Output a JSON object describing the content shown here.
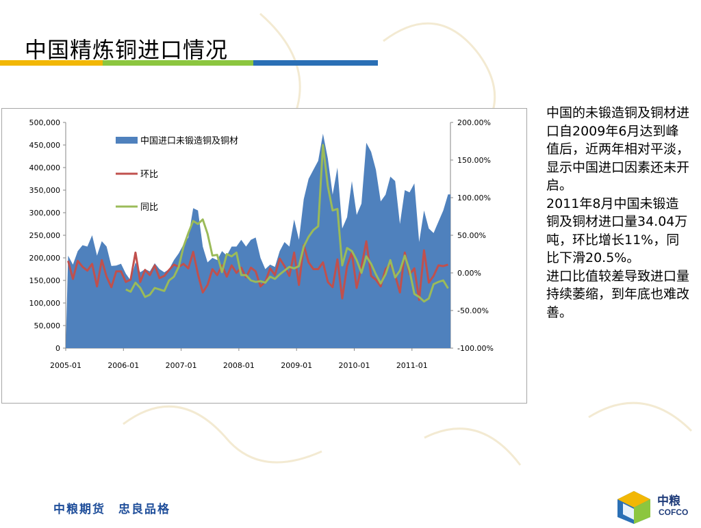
{
  "slide": {
    "title": "中国精炼铜进口情况",
    "commentary": [
      "中国的未锻造铜及铜材进口自2009年6月达到峰值后，近两年相对平淡，显示中国进口因素还未开启。",
      "2011年8月中国未锻造铜及铜材进口量34.04万吨，环比增长11%，同比下滑20.5%。",
      "进口比值较差导致进口量持续萎缩，到年底也难改善。"
    ],
    "footer_slogan": "中粮期货　忠良品格",
    "logo_cn": "中粮",
    "logo_en": "COFCO"
  },
  "colors": {
    "area": "#4f81bd",
    "mom": "#c0504d",
    "yoy": "#9bbb59",
    "underline": [
      "#f2b705",
      "#8cc63f",
      "#2a6fb5"
    ]
  },
  "chart_data": {
    "type": "area+line",
    "x": [
      "2005-01",
      "2005-02",
      "2005-03",
      "2005-04",
      "2005-05",
      "2005-06",
      "2005-07",
      "2005-08",
      "2005-09",
      "2005-10",
      "2005-11",
      "2005-12",
      "2006-01",
      "2006-02",
      "2006-03",
      "2006-04",
      "2006-05",
      "2006-06",
      "2006-07",
      "2006-08",
      "2006-09",
      "2006-10",
      "2006-11",
      "2006-12",
      "2007-01",
      "2007-02",
      "2007-03",
      "2007-04",
      "2007-05",
      "2007-06",
      "2007-07",
      "2007-08",
      "2007-09",
      "2007-10",
      "2007-11",
      "2007-12",
      "2008-01",
      "2008-02",
      "2008-03",
      "2008-04",
      "2008-05",
      "2008-06",
      "2008-07",
      "2008-08",
      "2008-09",
      "2008-10",
      "2008-11",
      "2008-12",
      "2009-01",
      "2009-02",
      "2009-03",
      "2009-04",
      "2009-05",
      "2009-06",
      "2009-07",
      "2009-08",
      "2009-09",
      "2009-10",
      "2009-11",
      "2009-12",
      "2010-01",
      "2010-02",
      "2010-03",
      "2010-04",
      "2010-05",
      "2010-06",
      "2010-07",
      "2010-08",
      "2010-09",
      "2010-10",
      "2010-11",
      "2010-12",
      "2011-01",
      "2011-02",
      "2011-03",
      "2011-04",
      "2011-05",
      "2011-06",
      "2011-07",
      "2011-08"
    ],
    "xticks": [
      "2005-01",
      "2006-01",
      "2007-01",
      "2008-01",
      "2009-01",
      "2010-01",
      "2011-01"
    ],
    "y_left_ticks": [
      "500,000",
      "450,000",
      "400,000",
      "350,000",
      "300,000",
      "250,000",
      "200,000",
      "150,000",
      "100,000",
      "50,000",
      "0"
    ],
    "y_right_ticks": [
      "200.00%",
      "150.00%",
      "100.00%",
      "50.00%",
      "0.00%",
      "-50.00%",
      "-100.00%"
    ],
    "y_left_range": [
      0,
      500000
    ],
    "y_right_range": [
      -100,
      200
    ],
    "series": [
      {
        "name": "中国进口未锻造铜及铜材",
        "axis": "left",
        "kind": "area",
        "values": [
          205000,
          185000,
          215000,
          228000,
          225000,
          250000,
          205000,
          237000,
          225000,
          182000,
          183000,
          187000,
          165000,
          150000,
          190000,
          168000,
          175000,
          170000,
          188000,
          175000,
          168000,
          175000,
          195000,
          210000,
          230000,
          245000,
          310000,
          305000,
          225000,
          190000,
          200000,
          195000,
          215000,
          205000,
          225000,
          225000,
          240000,
          225000,
          240000,
          245000,
          200000,
          175000,
          185000,
          180000,
          215000,
          235000,
          225000,
          285000,
          240000,
          330000,
          375000,
          395000,
          415000,
          475000,
          420000,
          340000,
          400000,
          265000,
          290000,
          370000,
          295000,
          320000,
          455000,
          435000,
          395000,
          325000,
          340000,
          380000,
          370000,
          275000,
          350000,
          345000,
          365000,
          235000,
          305000,
          265000,
          255000,
          280000,
          305000,
          340400
        ]
      },
      {
        "name": "环比",
        "axis": "right",
        "kind": "line",
        "values": [
          16,
          -8,
          16,
          8,
          3,
          12,
          -18,
          17,
          -5,
          -19,
          2,
          2,
          -12,
          -9,
          27,
          -12,
          4,
          -3,
          10,
          -7,
          -4,
          4,
          11,
          8,
          12,
          6,
          28,
          -2,
          -26,
          -16,
          5,
          -3,
          10,
          -5,
          10,
          0,
          7,
          -6,
          7,
          2,
          -18,
          -12,
          6,
          -3,
          19,
          9,
          -4,
          27,
          -16,
          37,
          14,
          5,
          5,
          14,
          -12,
          -19,
          18,
          -34,
          9,
          27,
          -20,
          8,
          42,
          -4,
          -9,
          -18,
          5,
          12,
          -3,
          -26,
          27,
          -2,
          6,
          -36,
          30,
          -13,
          -4,
          10,
          9,
          11
        ]
      },
      {
        "name": "同比",
        "axis": "right",
        "kind": "line",
        "values": [
          null,
          null,
          null,
          null,
          null,
          null,
          null,
          null,
          null,
          null,
          null,
          null,
          -22,
          -25,
          -13,
          -20,
          -32,
          -29,
          -20,
          -22,
          -24,
          -10,
          -5,
          8,
          35,
          53,
          69,
          65,
          71,
          52,
          23,
          24,
          1,
          25,
          22,
          27,
          -3,
          -3,
          -10,
          -12,
          -11,
          -13,
          -5,
          -8,
          -2,
          3,
          8,
          6,
          9,
          35,
          48,
          57,
          62,
          170,
          115,
          83,
          85,
          10,
          33,
          29,
          17,
          0,
          22,
          12,
          -2,
          -14,
          -2,
          17,
          -6,
          3,
          23,
          3,
          -28,
          -32,
          -38,
          -34,
          -15,
          -12,
          -10,
          -20.5
        ]
      }
    ]
  }
}
